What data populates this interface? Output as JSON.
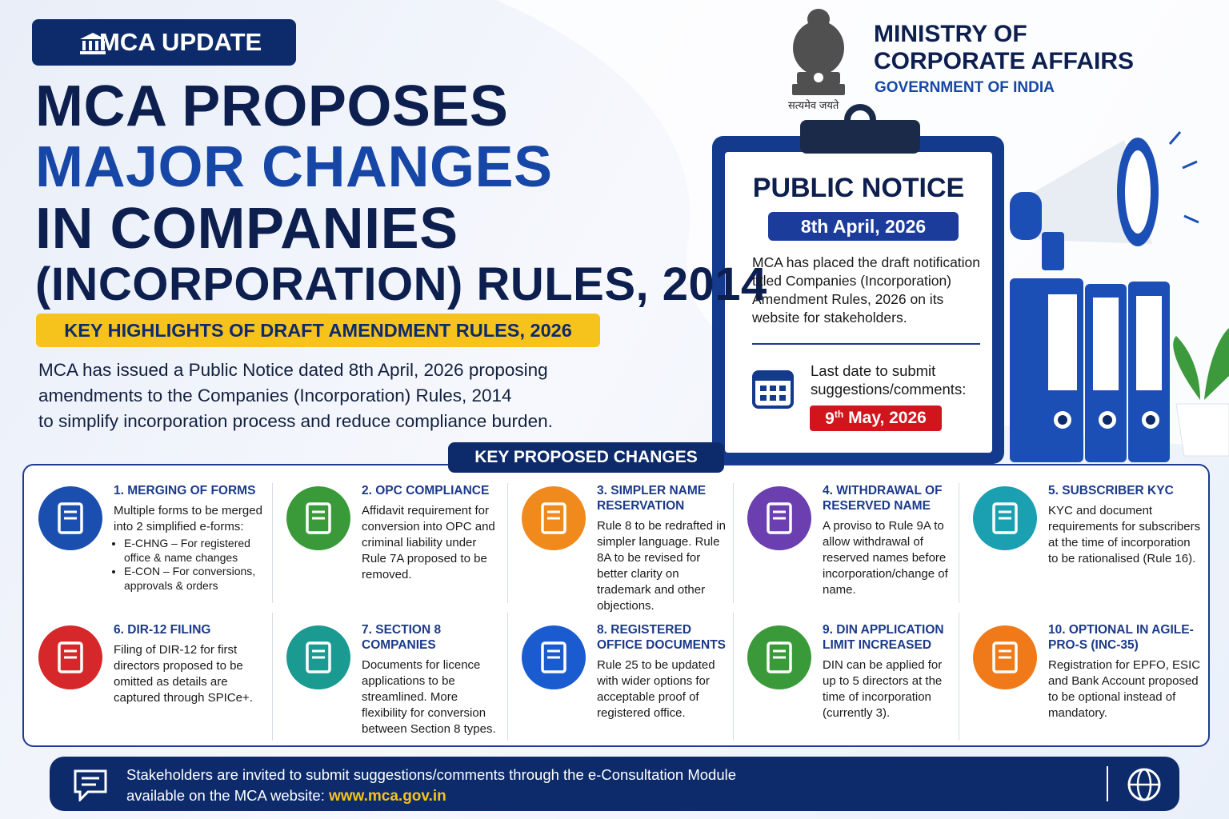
{
  "badge": "MCA UPDATE",
  "title": {
    "line1": "MCA PROPOSES",
    "line2": "MAJOR CHANGES",
    "line3": "IN COMPANIES",
    "line4": "(INCORPORATION) RULES, 2014"
  },
  "highlight": "KEY HIGHLIGHTS OF DRAFT AMENDMENT RULES, 2026",
  "intro": [
    "MCA has issued a Public Notice dated 8th April, 2026 proposing",
    "amendments to the Companies (Incorporation) Rules, 2014",
    "to simplify incorporation process and reduce compliance burden."
  ],
  "ministry": {
    "motto": "सत्यमेव जयते",
    "name_line1": "MINISTRY OF",
    "name_line2": "CORPORATE AFFAIRS",
    "government": "GOVERNMENT OF INDIA"
  },
  "notice": {
    "title": "PUBLIC NOTICE",
    "date": "8th April, 2026",
    "text": [
      "MCA has placed the draft notification",
      "titled Companies (Incorporation)",
      "Amendment Rules, 2026 on its",
      "website for stakeholders."
    ],
    "deadline_label": [
      "Last date to submit",
      "suggestions/comments:"
    ],
    "deadline": {
      "day": "9",
      "suffix": "th",
      "rest": "May, 2026"
    }
  },
  "changes": {
    "heading": "KEY PROPOSED CHANGES",
    "items": [
      {
        "number": "1.",
        "title": "MERGING OF FORMS",
        "text": "Multiple forms to be merged into 2 simplified e-forms:",
        "bullets": [
          "E-CHNG – For registered office & name changes",
          "E-CON – For conversions, approvals & orders"
        ]
      },
      {
        "number": "2.",
        "title": "OPC COMPLIANCE",
        "text": "Affidavit requirement for conversion into OPC and criminal liability under Rule 7A proposed to be removed."
      },
      {
        "number": "3.",
        "title": "SIMPLER NAME RESERVATION",
        "text": "Rule 8 to be redrafted in simpler language. Rule 8A to be revised for better clarity on trademark and other objections."
      },
      {
        "number": "4.",
        "title": "WITHDRAWAL OF RESERVED NAME",
        "text": "A proviso to Rule 9A to allow withdrawal of reserved names before incorporation/change of name."
      },
      {
        "number": "5.",
        "title": "SUBSCRIBER KYC",
        "text": "KYC and document requirements for subscribers at the time of incorporation to be rationalised (Rule 16)."
      },
      {
        "number": "6.",
        "title": "DIR-12 FILING",
        "text": "Filing of DIR-12 for first directors proposed to be omitted as details are captured through SPICe+."
      },
      {
        "number": "7.",
        "title": "SECTION 8 COMPANIES",
        "text": "Documents for licence applications to be streamlined. More flexibility for conversion between Section 8 types."
      },
      {
        "number": "8.",
        "title": "REGISTERED OFFICE DOCUMENTS",
        "text": "Rule 25 to be updated with wider options for acceptable proof of registered office."
      },
      {
        "number": "9.",
        "title": "DIN APPLICATION LIMIT INCREASED",
        "text": "DIN can be applied for up to 5 directors at the time of incorporation (currently 3)."
      },
      {
        "number": "10.",
        "title": "OPTIONAL IN AGILE-PRO-S (INC-35)",
        "text": "Registration for EPFO, ESIC and Bank Account proposed to be optional instead of mandatory."
      }
    ]
  },
  "footer": {
    "line1": "Stakeholders are invited to submit suggestions/comments through the e-Consultation Module",
    "line2": "available on the MCA website:",
    "url": "www.mca.gov.in"
  }
}
